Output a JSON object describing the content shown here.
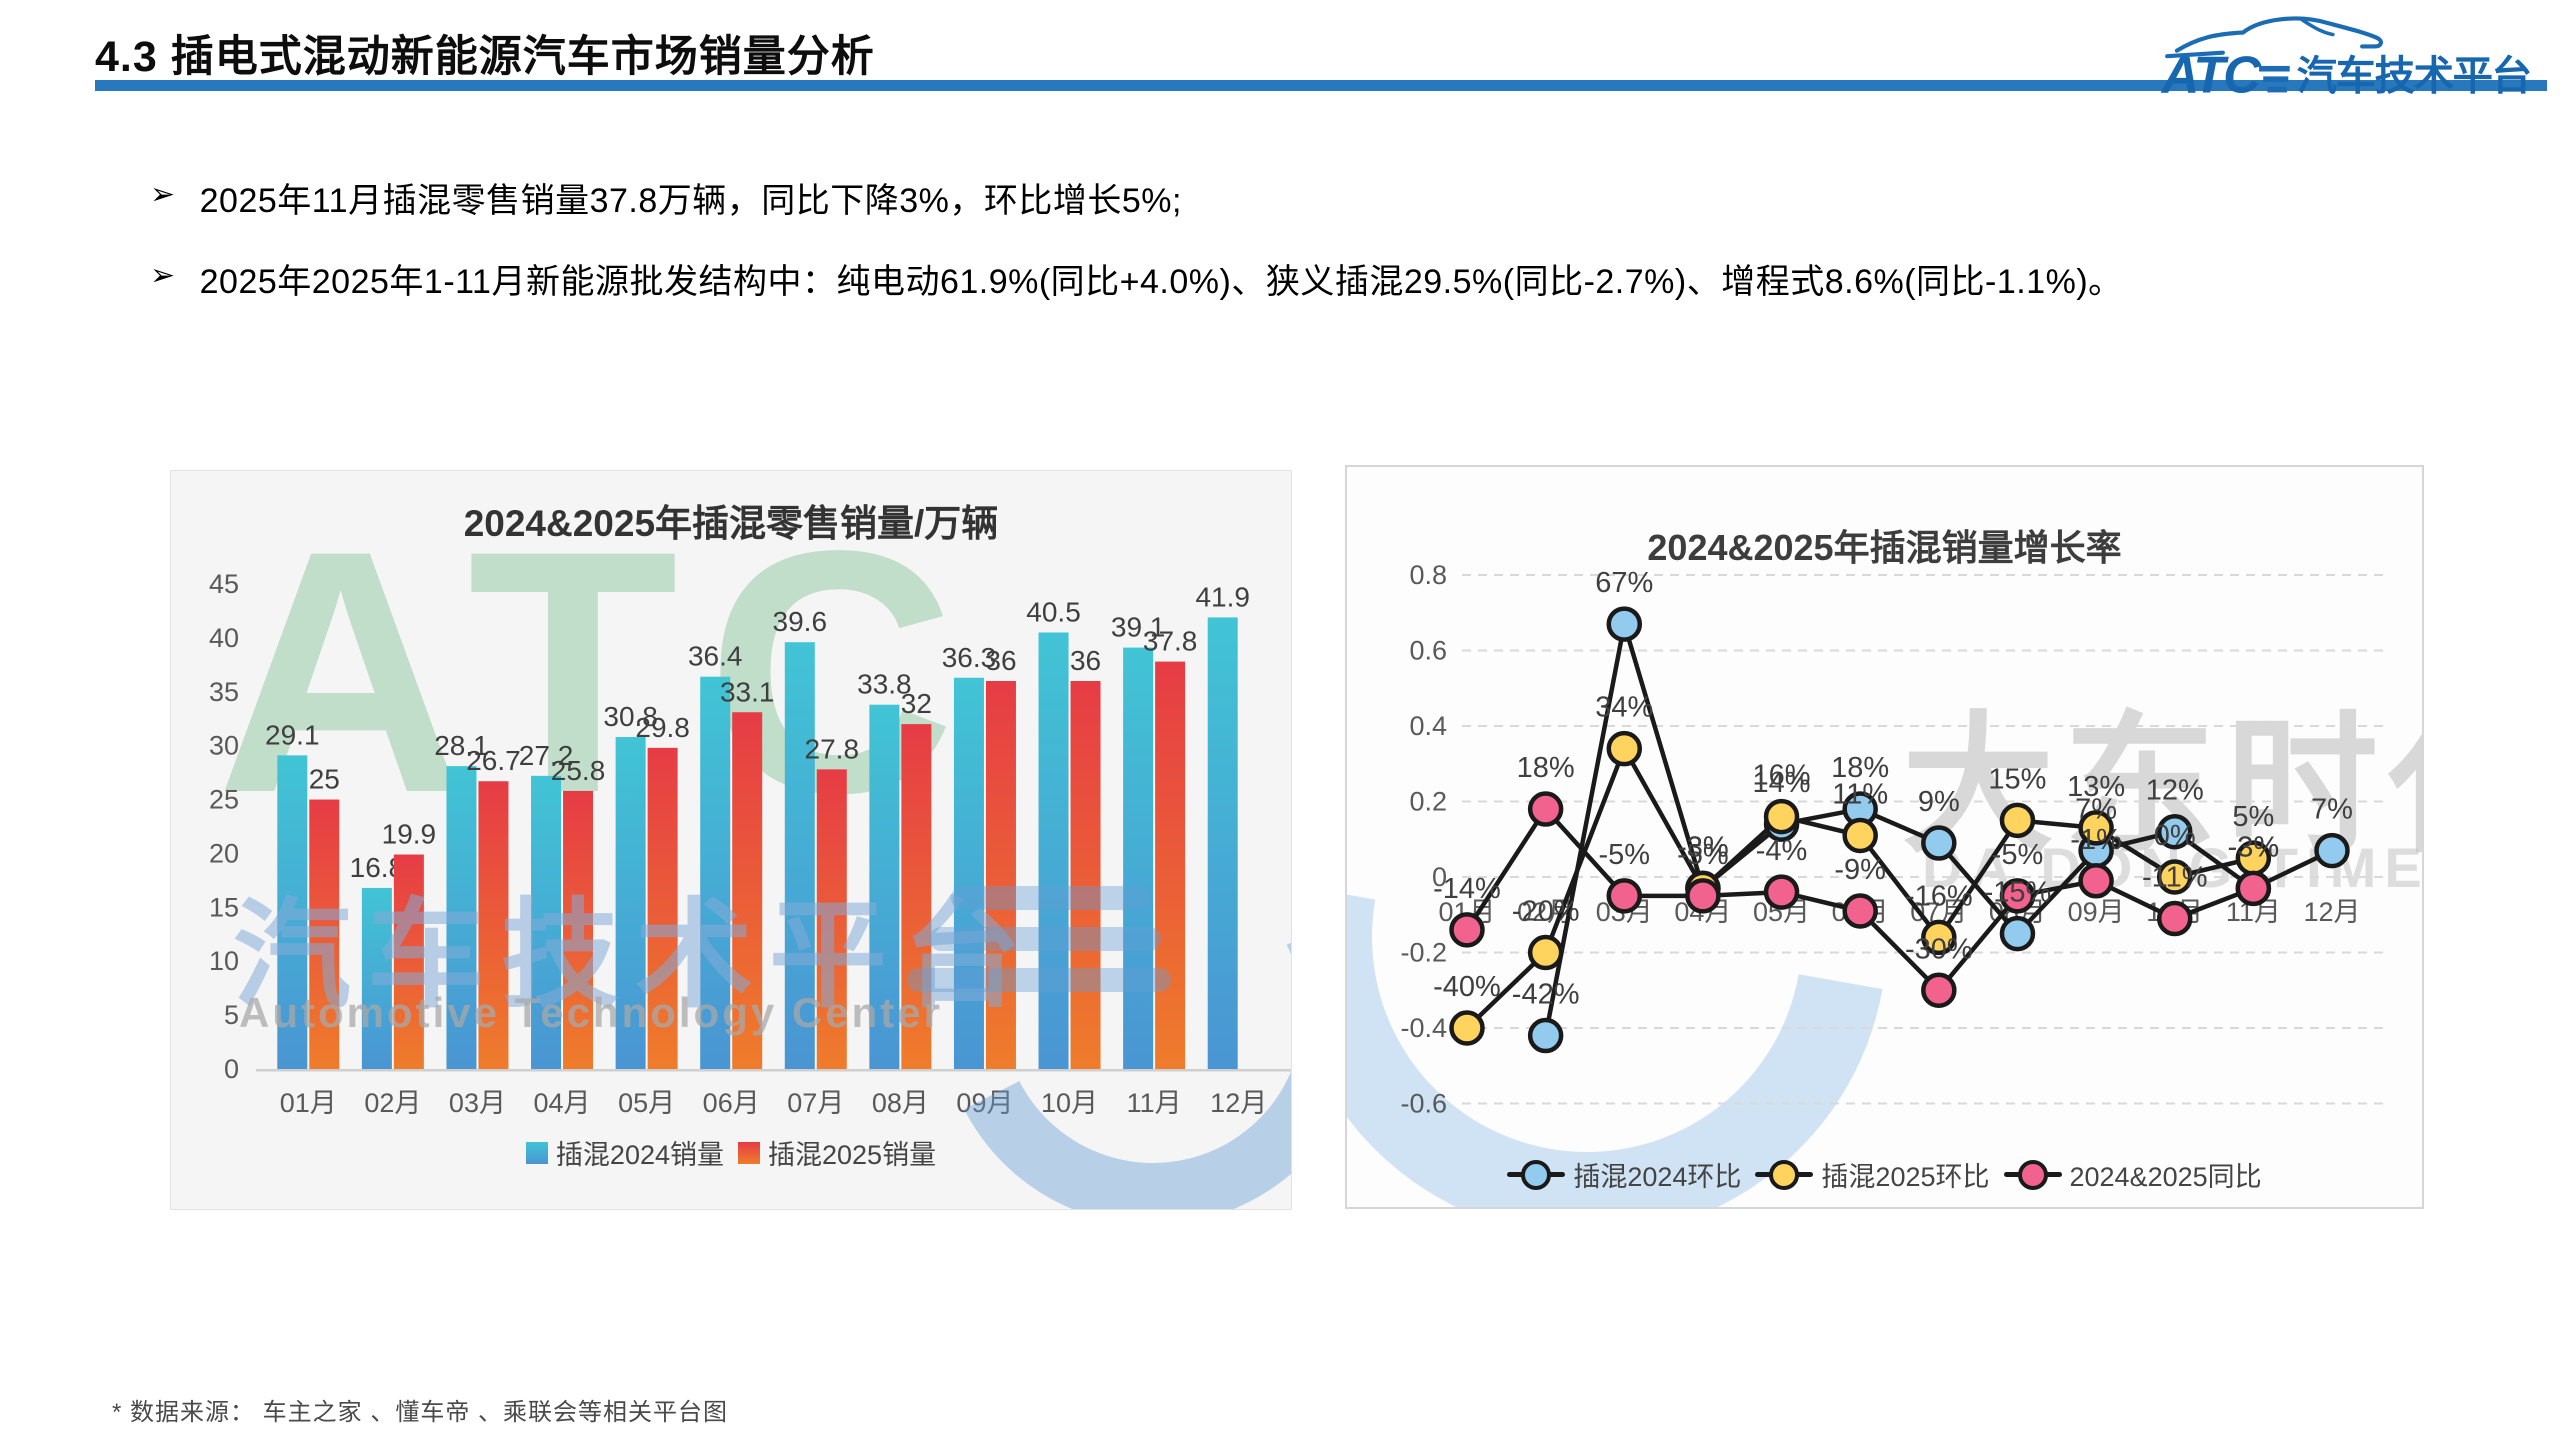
{
  "header": {
    "title": "4.3 插电式混动新能源汽车市场销量分析"
  },
  "logo": {
    "abbr": "ATC",
    "cn": "汽车技术平台"
  },
  "bullet_marker": "➢",
  "bullets": [
    "2025年11月插混零售销量37.8万辆，同比下降3%，环比增长5%;",
    "2025年2025年1-11月新能源批发结构中：纯电动61.9%(同比+4.0%)、狭义插混29.5%(同比-2.7%)、增程式8.6%(同比-1.1%)。"
  ],
  "watermarks": {
    "left_abbr": "ATC",
    "left_cn": "汽车技术平台",
    "left_en": "Automotive Technology Center",
    "right_cn": "大东时代",
    "right_en": "DA DONG TIMES"
  },
  "footer": "* 数据来源： 车主之家 、懂车帝 、乘联会等相关平台图",
  "chart_data": [
    {
      "type": "bar",
      "title": "2024&2025年插混零售销量/万辆",
      "ylabel": "万辆",
      "categories": [
        "01月",
        "02月",
        "03月",
        "04月",
        "05月",
        "06月",
        "07月",
        "08月",
        "09月",
        "10月",
        "11月",
        "12月"
      ],
      "ylim": [
        0,
        45
      ],
      "ytick_step": 5,
      "grid": false,
      "legend_position": "bottom",
      "series": [
        {
          "name": "插混2024销量",
          "colors": [
            "#41c4d5",
            "#4a95d3"
          ],
          "values": [
            29.1,
            16.8,
            28.1,
            27.2,
            30.8,
            36.4,
            39.6,
            33.8,
            36.3,
            40.5,
            39.1,
            41.9
          ],
          "labels": [
            "29.1",
            "16.8",
            "28.1",
            "27.2",
            "30.8",
            "36.4",
            "39.6",
            "33.8",
            "36.3",
            "40.5",
            "39.1",
            "41.9"
          ]
        },
        {
          "name": "插混2025销量",
          "colors": [
            "#e63c45",
            "#ef7c2b"
          ],
          "values": [
            25,
            19.9,
            26.7,
            25.8,
            29.8,
            33.1,
            27.8,
            32,
            36,
            36,
            37.8,
            null
          ],
          "labels": [
            "25",
            "19.9",
            "26.7",
            "25.8",
            "29.8",
            "33.1",
            "27.8",
            "32",
            "36",
            "36",
            "37.8",
            null
          ]
        }
      ]
    },
    {
      "type": "line",
      "title": "2024&2025年插混销量增长率",
      "categories": [
        "01月",
        "02月",
        "03月",
        "04月",
        "05月",
        "06月",
        "07月",
        "08月",
        "09月",
        "10月",
        "11月",
        "12月"
      ],
      "ylim": [
        -0.6,
        0.8
      ],
      "yticks": [
        0.8,
        0.6,
        0.4,
        0.2,
        0,
        -0.2,
        -0.4,
        -0.6
      ],
      "grid": "dashed",
      "legend_position": "bottom",
      "series": [
        {
          "name": "插混2024环比",
          "marker_color": "#92cbee",
          "line_color": "#1a1a1a",
          "values": [
            null,
            -0.42,
            0.67,
            -0.03,
            0.14,
            0.18,
            0.09,
            -0.15,
            0.07,
            0.12,
            -0.03,
            0.07
          ],
          "labels": [
            null,
            "-42%",
            "67%",
            "-3%",
            "14%",
            "18%",
            "9%",
            "-15%",
            "7%",
            "12%",
            "-3%",
            "7%"
          ]
        },
        {
          "name": "插混2025环比",
          "marker_color": "#ffd45e",
          "line_color": "#1a1a1a",
          "values": [
            -0.4,
            -0.2,
            0.34,
            -0.03,
            0.16,
            0.11,
            -0.16,
            0.15,
            0.13,
            0,
            0.05,
            null
          ],
          "labels": [
            "-40%",
            "-20%",
            "34%",
            "-3%",
            "16%",
            "11%",
            "-16%",
            "15%",
            "13%",
            "0%",
            "5%",
            null
          ]
        },
        {
          "name": "2024&2025同比",
          "marker_color": "#f2628f",
          "line_color": "#1a1a1a",
          "values": [
            -0.14,
            0.18,
            -0.05,
            -0.05,
            -0.04,
            -0.09,
            -0.3,
            -0.05,
            -0.01,
            -0.11,
            -0.03,
            null
          ],
          "labels": [
            "-14%",
            "18%",
            "-5%",
            "-5%",
            "-4%",
            "-9%",
            "-30%",
            "-5%",
            "-1%",
            "-11%",
            "-3%",
            null
          ]
        }
      ]
    }
  ]
}
